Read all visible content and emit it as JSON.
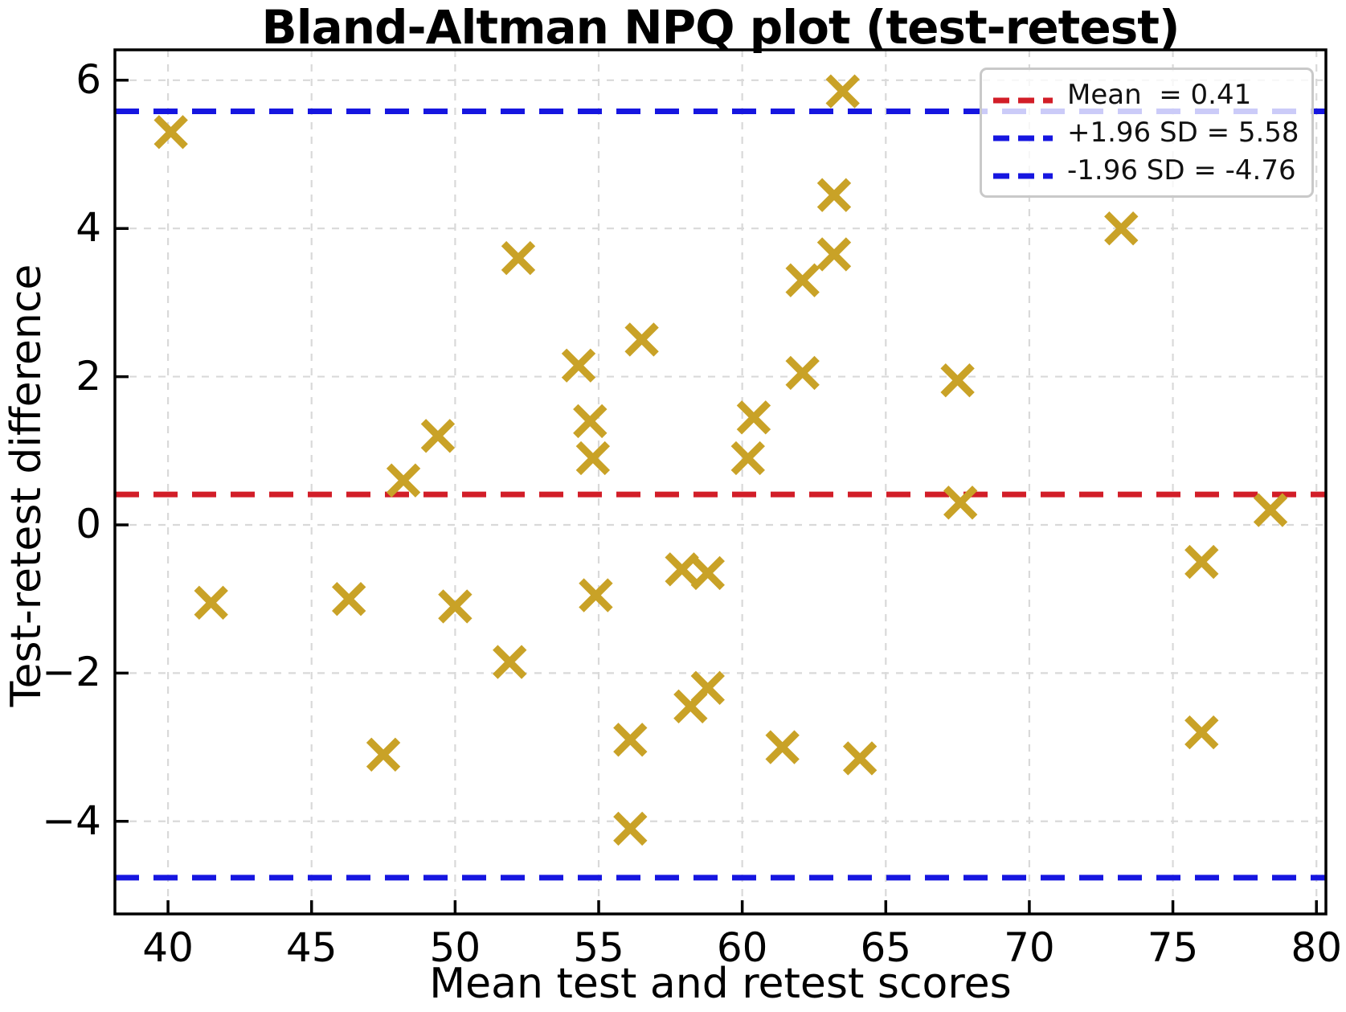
{
  "chart_data": {
    "type": "scatter",
    "title": "Bland-Altman NPQ plot (test-retest)",
    "xlabel": "Mean test and retest scores",
    "ylabel": "Test-retest difference",
    "xlim": [
      38.15,
      80.33
    ],
    "ylim": [
      -5.25,
      6.41
    ],
    "grid": true,
    "xticks": [
      {
        "v": 40,
        "label": "40"
      },
      {
        "v": 45,
        "label": "45"
      },
      {
        "v": 50,
        "label": "50"
      },
      {
        "v": 55,
        "label": "55"
      },
      {
        "v": 60,
        "label": "60"
      },
      {
        "v": 65,
        "label": "65"
      },
      {
        "v": 70,
        "label": "70"
      },
      {
        "v": 75,
        "label": "75"
      },
      {
        "v": 80,
        "label": "80"
      }
    ],
    "yticks": [
      {
        "v": 6,
        "label": "6"
      },
      {
        "v": 4,
        "label": "4"
      },
      {
        "v": 2,
        "label": "2"
      },
      {
        "v": 0,
        "label": "0"
      },
      {
        "v": -2,
        "label": "−2"
      },
      {
        "v": -4,
        "label": "−4"
      }
    ],
    "points": [
      [
        40.1,
        5.3
      ],
      [
        41.5,
        -1.05
      ],
      [
        46.3,
        -1.0
      ],
      [
        47.5,
        -3.1
      ],
      [
        48.2,
        0.6
      ],
      [
        49.4,
        1.2
      ],
      [
        50.0,
        -1.1
      ],
      [
        51.9,
        -1.85
      ],
      [
        52.2,
        3.6
      ],
      [
        54.3,
        2.15
      ],
      [
        54.7,
        1.4
      ],
      [
        54.8,
        0.9
      ],
      [
        54.9,
        -0.95
      ],
      [
        56.1,
        -2.9
      ],
      [
        56.1,
        -4.1
      ],
      [
        56.5,
        2.5
      ],
      [
        57.9,
        -0.6
      ],
      [
        58.2,
        -2.45
      ],
      [
        58.8,
        -2.2
      ],
      [
        58.8,
        -0.65
      ],
      [
        60.2,
        0.9
      ],
      [
        60.4,
        1.45
      ],
      [
        61.4,
        -3.0
      ],
      [
        62.1,
        2.05
      ],
      [
        62.1,
        3.3
      ],
      [
        63.2,
        3.65
      ],
      [
        63.2,
        4.45
      ],
      [
        63.5,
        5.85
      ],
      [
        64.1,
        -3.15
      ],
      [
        67.5,
        1.95
      ],
      [
        67.6,
        0.3
      ],
      [
        73.2,
        4.0
      ],
      [
        76.0,
        -0.5
      ],
      [
        76.0,
        -2.8
      ],
      [
        78.4,
        0.2
      ]
    ],
    "reference_lines": [
      {
        "name": "mean",
        "value": 0.41,
        "color": "#d21e28"
      },
      {
        "name": "upper_loa",
        "value": 5.58,
        "color": "#1616e0"
      },
      {
        "name": "lower_loa",
        "value": -4.76,
        "color": "#1616e0"
      }
    ],
    "marker": {
      "symbol": "x",
      "color": "#c9a227",
      "size": 18,
      "stroke_width": 9
    },
    "legend": {
      "position": "top-right",
      "items": [
        {
          "label": "Mean  = 0.41",
          "color": "#d21e28"
        },
        {
          "label": "+1.96 SD = 5.58",
          "color": "#1616e0"
        },
        {
          "label": "-1.96 SD = -4.76",
          "color": "#1616e0"
        }
      ]
    },
    "colors": {
      "gridline": "#d9d9d9",
      "spine": "#000000",
      "background": "#ffffff"
    }
  }
}
